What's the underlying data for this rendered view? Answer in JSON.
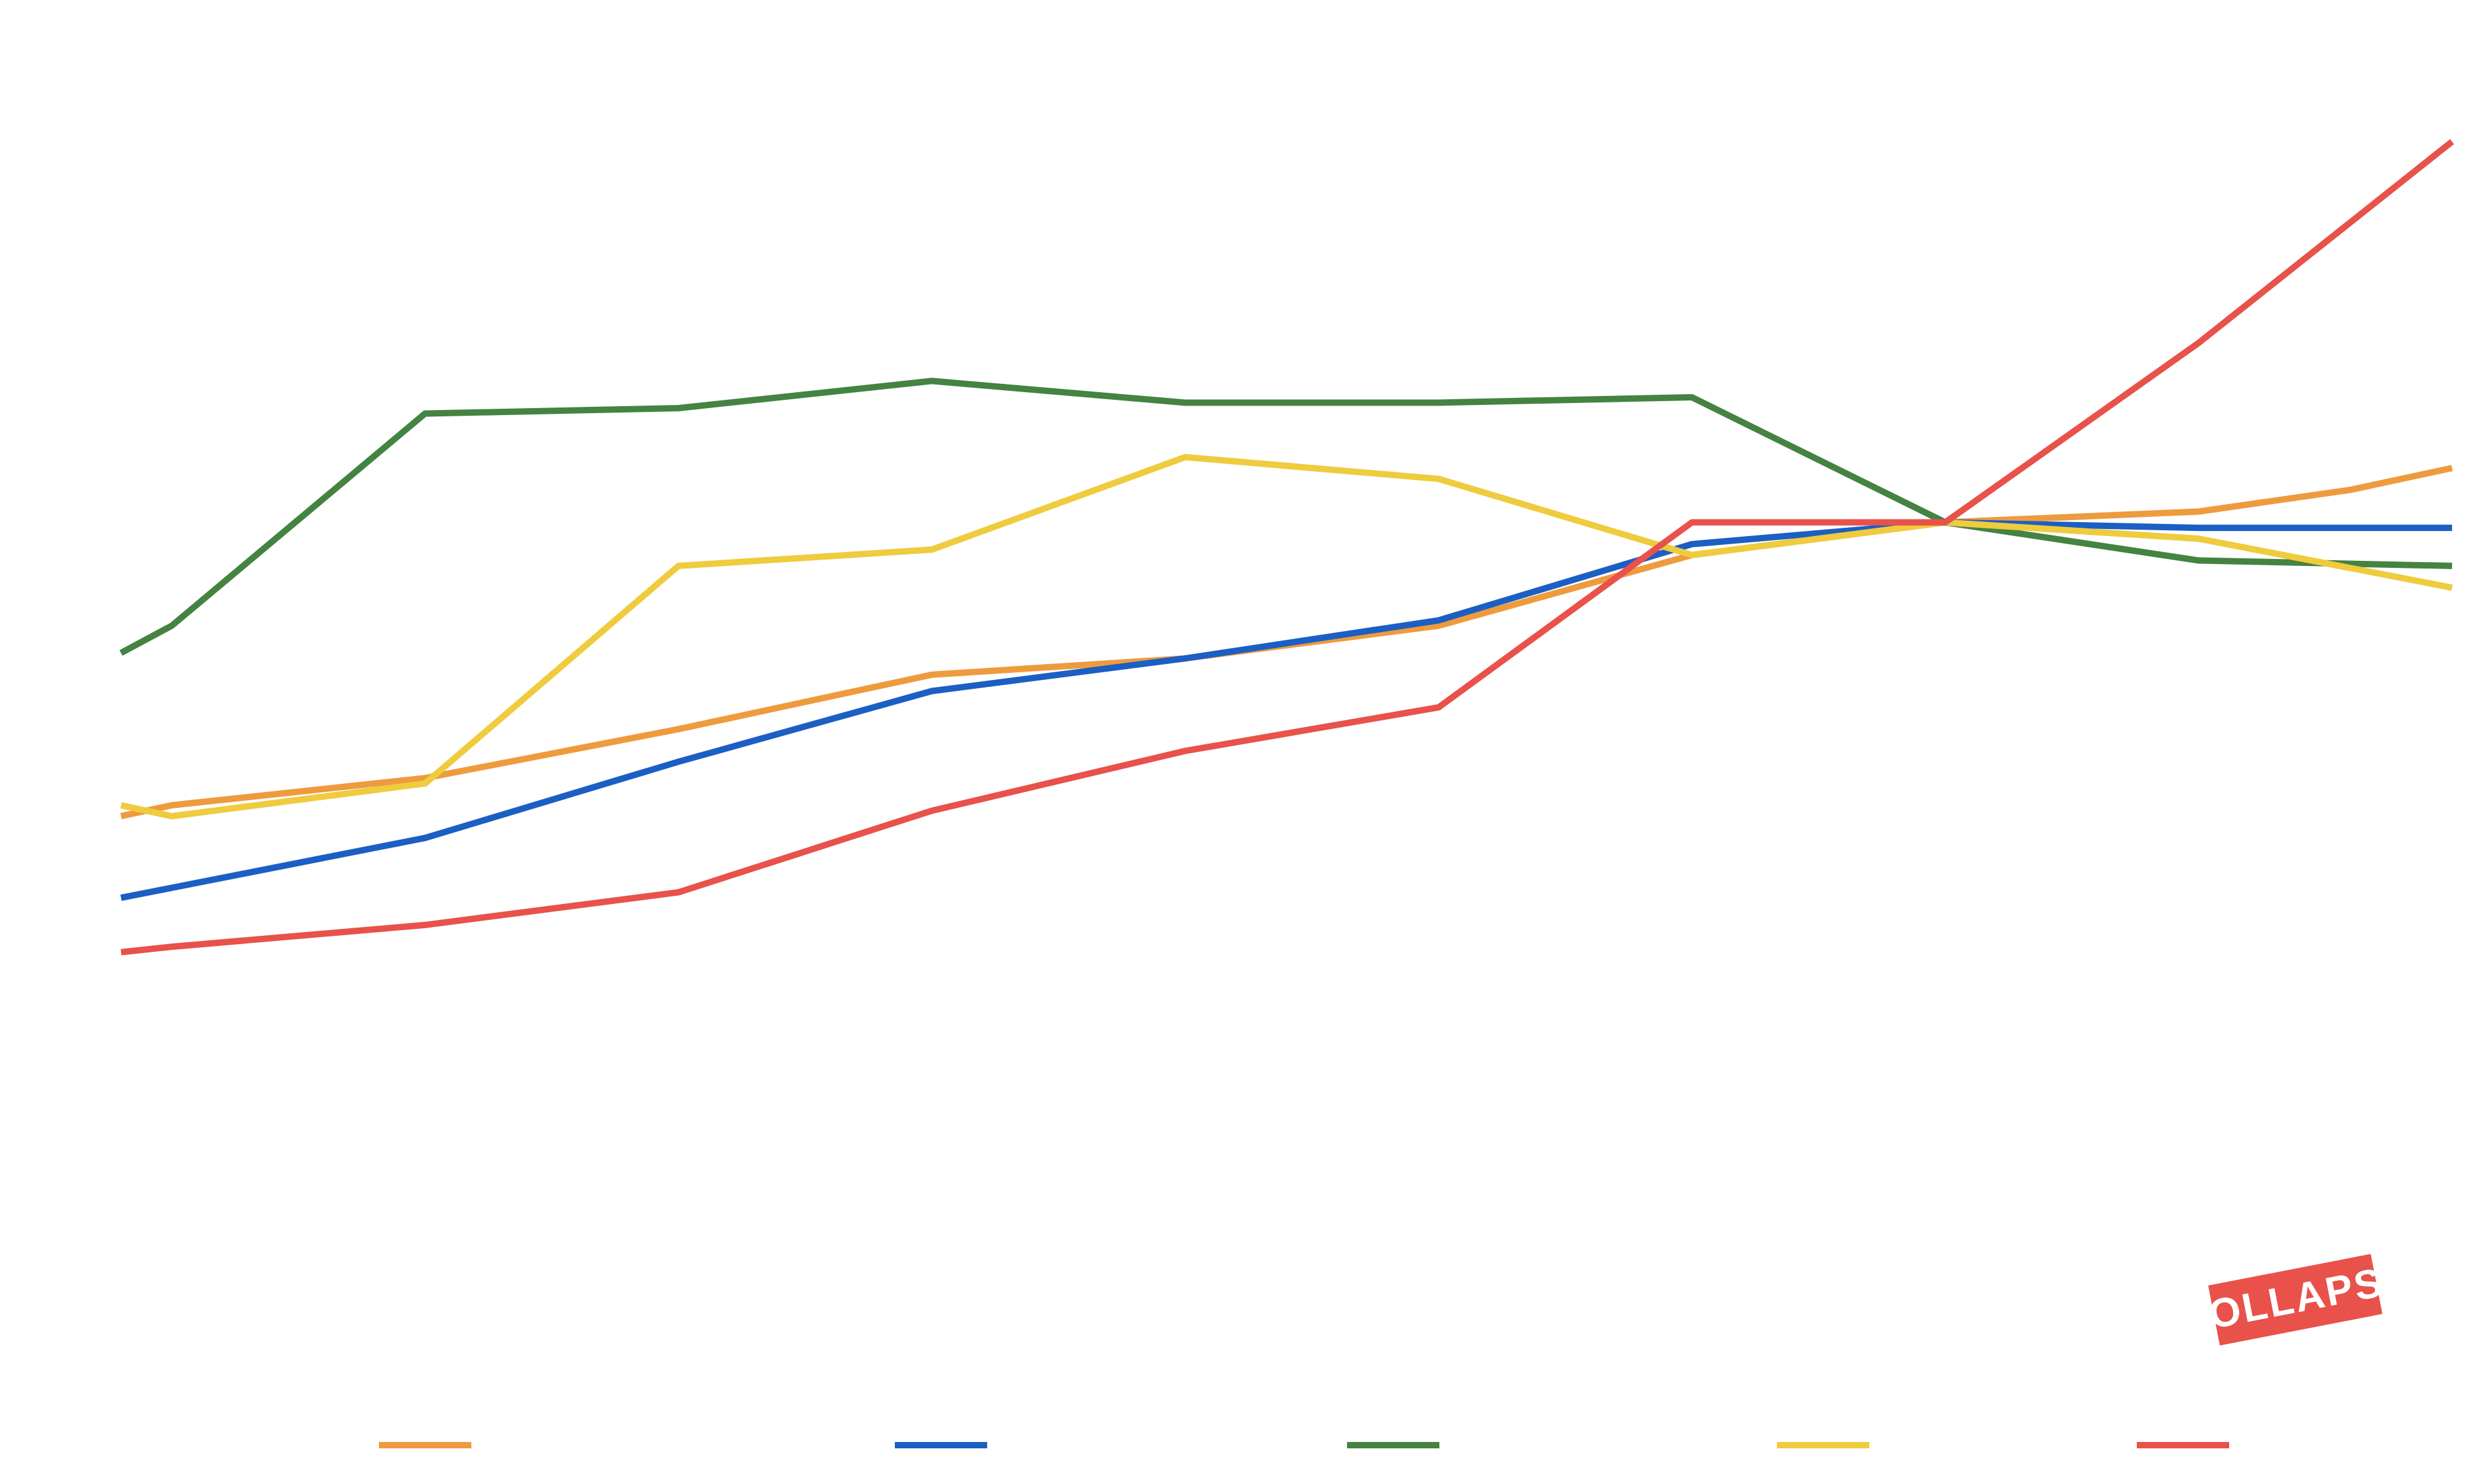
{
  "chart_data": {
    "type": "line",
    "title": "",
    "xlabel": "",
    "ylabel": "",
    "x": [
      0,
      0.2,
      1.2,
      2.2,
      3.2,
      4.2,
      5.2,
      6.2,
      7.2,
      8.2,
      9.2
    ],
    "ylim": [
      0,
      2.2
    ],
    "grid": false,
    "legend_position": "bottom",
    "series": [
      {
        "name": "",
        "color": "#EE9B3E",
        "points": [
          [
            0,
            0.77
          ],
          [
            0.2,
            0.79
          ],
          [
            1.2,
            0.84
          ],
          [
            2.2,
            0.93
          ],
          [
            3.2,
            1.03
          ],
          [
            4.2,
            1.06
          ],
          [
            5.2,
            1.12
          ],
          [
            6.2,
            1.25
          ],
          [
            7.2,
            1.31
          ],
          [
            8.2,
            1.33
          ],
          [
            8.8,
            1.37
          ],
          [
            9.2,
            1.41
          ]
        ]
      },
      {
        "name": "",
        "color": "#1B5FC4",
        "points": [
          [
            0,
            0.62
          ],
          [
            1.2,
            0.73
          ],
          [
            2.2,
            0.87
          ],
          [
            3.2,
            1.0
          ],
          [
            4.2,
            1.06
          ],
          [
            5.2,
            1.13
          ],
          [
            6.2,
            1.27
          ],
          [
            7.2,
            1.31
          ],
          [
            8.2,
            1.3
          ],
          [
            9.2,
            1.3
          ]
        ]
      },
      {
        "name": "",
        "color": "#448342",
        "points": [
          [
            0,
            1.07
          ],
          [
            0.2,
            1.12
          ],
          [
            1.2,
            1.51
          ],
          [
            2.2,
            1.52
          ],
          [
            3.2,
            1.57
          ],
          [
            4.2,
            1.53
          ],
          [
            5.2,
            1.53
          ],
          [
            6.2,
            1.54
          ],
          [
            7.2,
            1.31
          ],
          [
            8.2,
            1.24
          ],
          [
            9.2,
            1.23
          ]
        ]
      },
      {
        "name": "",
        "color": "#EFCB3E",
        "points": [
          [
            0,
            0.79
          ],
          [
            0.2,
            0.77
          ],
          [
            1.2,
            0.83
          ],
          [
            2.2,
            1.23
          ],
          [
            3.2,
            1.26
          ],
          [
            4.2,
            1.43
          ],
          [
            5.2,
            1.39
          ],
          [
            6.2,
            1.25
          ],
          [
            7.2,
            1.31
          ],
          [
            8.2,
            1.28
          ],
          [
            9.2,
            1.19
          ]
        ]
      },
      {
        "name": "",
        "color": "#E8524A",
        "points": [
          [
            0,
            0.52
          ],
          [
            0.2,
            0.53
          ],
          [
            1.2,
            0.57
          ],
          [
            2.2,
            0.63
          ],
          [
            3.2,
            0.78
          ],
          [
            4.2,
            0.89
          ],
          [
            5.2,
            0.97
          ],
          [
            6.2,
            1.31
          ],
          [
            7.2,
            1.31
          ],
          [
            8.2,
            1.64
          ],
          [
            9.2,
            2.01
          ]
        ]
      }
    ]
  },
  "logo": {
    "text": "COLLAPSE",
    "color": "#E8524A"
  }
}
